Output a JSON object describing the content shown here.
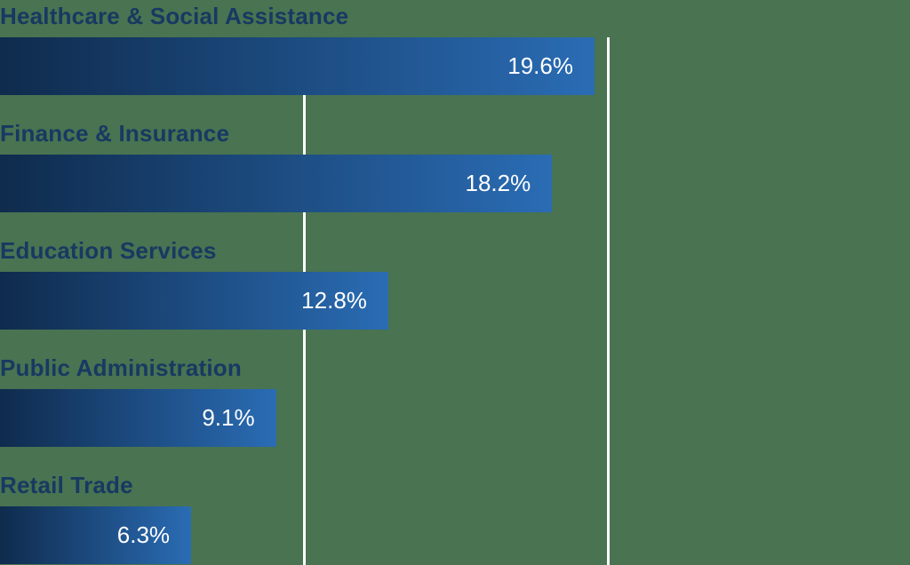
{
  "chart_data": {
    "type": "bar",
    "orientation": "horizontal",
    "title": "",
    "xlabel": "",
    "ylabel": "",
    "categories": [
      "Healthcare & Social Assistance",
      "Finance & Insurance",
      "Education Services",
      "Public Administration",
      "Retail Trade"
    ],
    "values": [
      19.6,
      18.2,
      12.8,
      9.1,
      6.3
    ],
    "value_labels": [
      "19.6%",
      "18.2%",
      "12.8%",
      "9.1%",
      "6.3%"
    ],
    "xlim": [
      0,
      30
    ],
    "gridlines_percent": [
      10,
      20
    ],
    "grid_on": true,
    "legend": "none"
  },
  "colors": {
    "background": "#497351",
    "gridline": "#ffffff",
    "bar_gradient_start": "#0f2b4d",
    "bar_gradient_end": "#2a6cb4",
    "category_label": "#183962",
    "value_label": "#ffffff"
  }
}
